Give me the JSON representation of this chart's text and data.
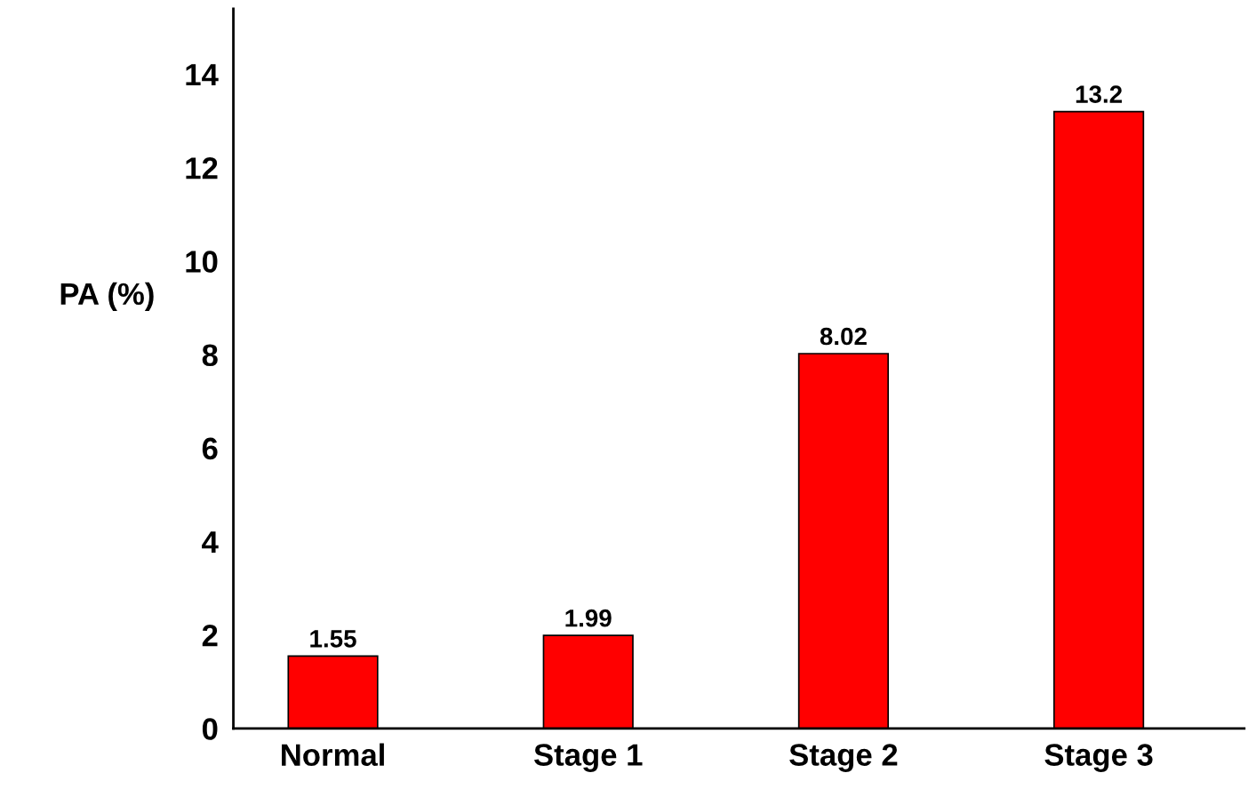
{
  "chart_data": {
    "type": "bar",
    "ylabel": "PA (%)",
    "categories": [
      "Normal",
      "Stage 1",
      "Stage 2",
      "Stage 3"
    ],
    "values": [
      1.55,
      1.99,
      8.02,
      13.2
    ],
    "color": "#ff0000",
    "ylim": [
      0,
      15.4
    ],
    "yticks": [
      0,
      2,
      4,
      6,
      8,
      10,
      12,
      14
    ],
    "data_labels": true,
    "grid": false,
    "legend": false
  }
}
